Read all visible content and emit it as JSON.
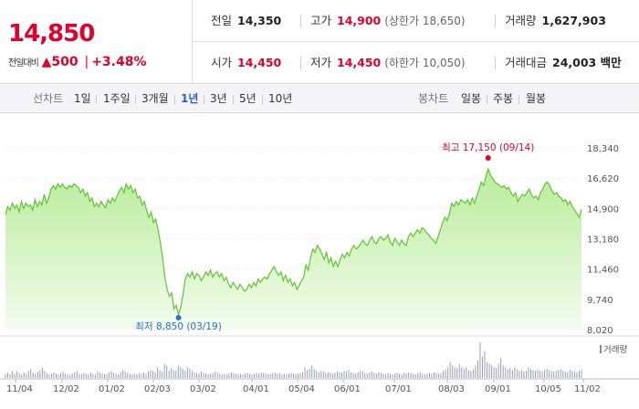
{
  "header": {
    "price": "14,850",
    "change_label": "전일대비",
    "change_arrow": "▲",
    "change_value": "500",
    "change_pct": "+3.48%",
    "prev_close_label": "전일",
    "prev_close": "14,350",
    "high_label": "고가",
    "high": "14,900",
    "upper_limit": "(상한가 18,650)",
    "volume_label": "거래량",
    "volume": "1,627,903",
    "open_label": "시가",
    "open": "14,450",
    "low_label": "저가",
    "low": "14,450",
    "lower_limit": "(하한가 10,050)",
    "amount_label": "거래대금",
    "amount": "24,003 백만"
  },
  "toolbar": {
    "line_label": "선차트",
    "line_periods": [
      "1일",
      "1주일",
      "3개월",
      "1년",
      "3년",
      "5년",
      "10년"
    ],
    "active_period": "1년",
    "candle_label": "봉차트",
    "candle_periods": [
      "일봉",
      "주봉",
      "월봉"
    ]
  },
  "colors": {
    "up": "#e0002a",
    "active": "#2a5bd7",
    "line": "#5fc431",
    "area_top": "#b8ec9a",
    "area_bottom": "#f3fcee",
    "high_marker": "#e0002a",
    "low_marker": "#2a6fd3"
  },
  "chart_data": {
    "type": "area",
    "y_ticks": [
      "18,340",
      "16,620",
      "14,900",
      "13,180",
      "11,460",
      "9,740",
      "8,020"
    ],
    "ylim": [
      8020,
      18340
    ],
    "x_ticks": [
      "11/04",
      "12/02",
      "01/02",
      "02/03",
      "03/02",
      "04/01",
      "05/04",
      "06/01",
      "07/01",
      "08/03",
      "09/01",
      "10/05",
      "11/02"
    ],
    "high_annotation": "최고 17,150 (09/14)",
    "low_annotation": "최저 8,850 (03/19)",
    "high": 17150,
    "low": 8850,
    "volume_label": "거래량",
    "values": [
      14550,
      15000,
      14800,
      15200,
      14900,
      15100,
      14700,
      15300,
      14900,
      15200,
      15000,
      15100,
      14800,
      15400,
      15000,
      15300,
      15100,
      15700,
      15200,
      15500,
      16000,
      16200,
      16000,
      16300,
      16100,
      16300,
      16100,
      16000,
      16200,
      16100,
      16300,
      16200,
      16100,
      15800,
      16000,
      15600,
      15800,
      15300,
      15500,
      15000,
      15200,
      15000,
      15300,
      15100,
      14950,
      15400,
      15200,
      15500,
      15300,
      15600,
      15900,
      16100,
      15800,
      16300,
      16000,
      16200,
      15800,
      16000,
      15500,
      15600,
      15100,
      15300,
      14800,
      14400,
      14700,
      14100,
      14300,
      13700,
      13000,
      12100,
      11000,
      10300,
      9900,
      10100,
      9200,
      9400,
      8850,
      9300,
      10000,
      10900,
      11200,
      11000,
      11300,
      10900,
      11200,
      11100,
      10800,
      11000,
      11300,
      11100,
      11400,
      11000,
      11200,
      11300,
      11000,
      11200,
      10800,
      11000,
      10600,
      10400,
      10700,
      10500,
      10300,
      10600,
      10400,
      10200,
      10300,
      10600,
      10400,
      10700,
      10500,
      10900,
      10700,
      10900,
      11000,
      10900,
      11200,
      11400,
      11600,
      11300,
      11100,
      11300,
      10800,
      11100,
      10700,
      10900,
      10500,
      10700,
      10300,
      10500,
      10800,
      11000,
      11700,
      11400,
      12100,
      12600,
      12400,
      12800,
      12600,
      12300,
      12000,
      12400,
      11800,
      12100,
      11600,
      11900,
      11600,
      12000,
      12300,
      12100,
      12400,
      12200,
      12600,
      12800,
      12600,
      12700,
      12900,
      13100,
      12900,
      12800,
      13100,
      13300,
      13000,
      12900,
      13200,
      13300,
      13100,
      13200,
      13400,
      13000,
      12800,
      13200,
      13000,
      12800,
      13100,
      12900,
      12800,
      13300,
      13500,
      13300,
      13500,
      13700,
      13500,
      13800,
      13700,
      13500,
      13400,
      13200,
      13100,
      12900,
      13300,
      13700,
      14100,
      14400,
      14200,
      14600,
      15200,
      15000,
      15300,
      15100,
      15400,
      15300,
      15200,
      15400,
      15100,
      15500,
      15200,
      15600,
      16000,
      16400,
      16200,
      16700,
      17150,
      16800,
      16600,
      16400,
      16300,
      16200,
      16100,
      16200,
      16000,
      16100,
      15800,
      15600,
      15800,
      15300,
      15500,
      15700,
      15600,
      15800,
      16000,
      15700,
      15500,
      15600,
      15400,
      15800,
      16000,
      16300,
      16400,
      16200,
      15900,
      15700,
      15800,
      15600,
      15500,
      15300,
      15400,
      15100,
      15300,
      15000,
      14800,
      14600,
      14400,
      14850
    ],
    "volume_bars": [
      0.12,
      0.15,
      0.1,
      0.18,
      0.12,
      0.2,
      0.14,
      0.1,
      0.16,
      0.12,
      0.2,
      0.25,
      0.15,
      0.12,
      0.18,
      0.22,
      0.3,
      0.2,
      0.14,
      0.1,
      0.12,
      0.16,
      0.12,
      0.1,
      0.14,
      0.18,
      0.12,
      0.1,
      0.08,
      0.12,
      0.16,
      0.2,
      0.12,
      0.1,
      0.14,
      0.12,
      0.1,
      0.15,
      0.12,
      0.1,
      0.18,
      0.14,
      0.12,
      0.1,
      0.12,
      0.16,
      0.2,
      0.14,
      0.12,
      0.1,
      0.16,
      0.22,
      0.18,
      0.14,
      0.12,
      0.1,
      0.12,
      0.1,
      0.14,
      0.12,
      0.16,
      0.12,
      0.18,
      0.22,
      0.2,
      0.16,
      0.3,
      0.22,
      0.18,
      0.4,
      0.35,
      0.2,
      0.28,
      0.22,
      0.2,
      0.35,
      0.3,
      0.25,
      0.2,
      0.3,
      0.26,
      0.2,
      0.16,
      0.14,
      0.12,
      0.18,
      0.14,
      0.12,
      0.1,
      0.12,
      0.14,
      0.18,
      0.14,
      0.12,
      0.1,
      0.12,
      0.1,
      0.12,
      0.16,
      0.14,
      0.12,
      0.1,
      0.12,
      0.1,
      0.12,
      0.14,
      0.12,
      0.1,
      0.12,
      0.14,
      0.12,
      0.16,
      0.14,
      0.12,
      0.1,
      0.12,
      0.14,
      0.16,
      0.12,
      0.14,
      0.1,
      0.12,
      0.1,
      0.12,
      0.14,
      0.12,
      0.1,
      0.12,
      0.14,
      0.16,
      0.3,
      0.22,
      0.26,
      0.35,
      0.25,
      0.2,
      0.16,
      0.2,
      0.18,
      0.14,
      0.16,
      0.14,
      0.12,
      0.14,
      0.18,
      0.16,
      0.14,
      0.2,
      0.18,
      0.22,
      0.16,
      0.14,
      0.12,
      0.16,
      0.2,
      0.18,
      0.14,
      0.12,
      0.16,
      0.18,
      0.14,
      0.12,
      0.16,
      0.14,
      0.12,
      0.1,
      0.14,
      0.12,
      0.1,
      0.12,
      0.14,
      0.12,
      0.1,
      0.14,
      0.12,
      0.16,
      0.14,
      0.12,
      0.1,
      0.14,
      0.16,
      0.12,
      0.1,
      0.12,
      0.14,
      0.12,
      0.16,
      0.14,
      0.12,
      0.14,
      0.2,
      0.25,
      0.3,
      0.45,
      0.35,
      0.3,
      0.28,
      0.4,
      0.3,
      0.25,
      0.3,
      0.22,
      0.2,
      0.24,
      0.35,
      0.5,
      1.0,
      0.6,
      0.75,
      0.45,
      0.4,
      0.35,
      0.3,
      0.28,
      0.4,
      0.55,
      0.35,
      0.3,
      0.25,
      0.28,
      0.22,
      0.3,
      0.25,
      0.2,
      0.22,
      0.18,
      0.2,
      0.3,
      0.25,
      0.22,
      0.2,
      0.24,
      0.2,
      0.18,
      0.22,
      0.26,
      0.22,
      0.2,
      0.18,
      0.2,
      0.22,
      0.25,
      0.2,
      0.18,
      0.16,
      0.22,
      0.2,
      0.18,
      0.16,
      0.2,
      0.22
    ]
  }
}
